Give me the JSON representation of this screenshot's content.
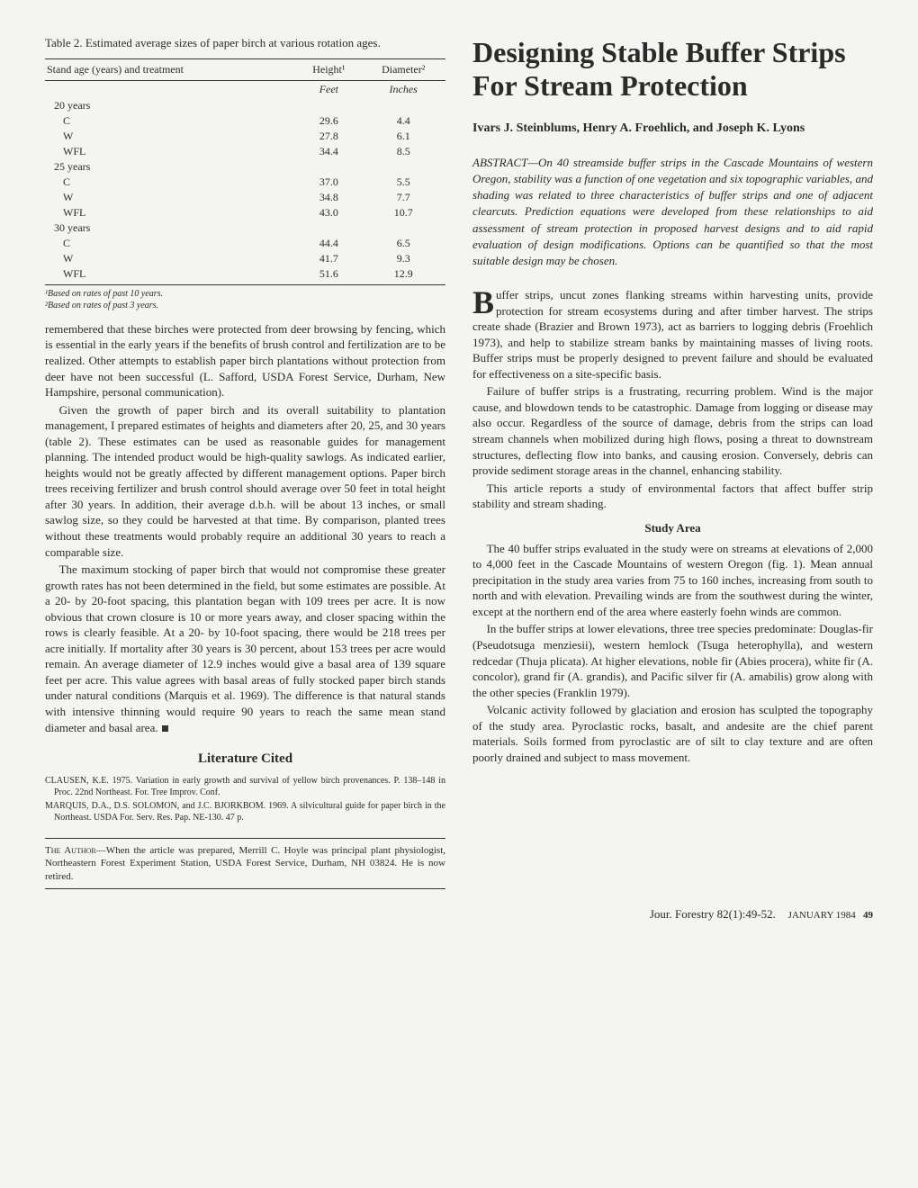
{
  "left": {
    "table_title": "Table 2. Estimated average sizes of paper birch at various rotation ages.",
    "table": {
      "head1": "Stand age (years) and treatment",
      "head2": "Height¹",
      "head3": "Diameter²",
      "unit2": "Feet",
      "unit3": "Inches",
      "groups": [
        {
          "label": "20 years",
          "rows": [
            [
              "C",
              "29.6",
              "4.4"
            ],
            [
              "W",
              "27.8",
              "6.1"
            ],
            [
              "WFL",
              "34.4",
              "8.5"
            ]
          ]
        },
        {
          "label": "25 years",
          "rows": [
            [
              "C",
              "37.0",
              "5.5"
            ],
            [
              "W",
              "34.8",
              "7.7"
            ],
            [
              "WFL",
              "43.0",
              "10.7"
            ]
          ]
        },
        {
          "label": "30 years",
          "rows": [
            [
              "C",
              "44.4",
              "6.5"
            ],
            [
              "W",
              "41.7",
              "9.3"
            ],
            [
              "WFL",
              "51.6",
              "12.9"
            ]
          ]
        }
      ]
    },
    "foot1": "¹Based on rates of past 10 years.",
    "foot2": "²Based on rates of past 3 years.",
    "p1": "remembered that these birches were protected from deer browsing by fencing, which is essential in the early years if the benefits of brush control and fertilization are to be realized. Other attempts to establish paper birch plantations without protection from deer have not been successful (L. Safford, USDA Forest Service, Durham, New Hampshire, personal communication).",
    "p2": "Given the growth of paper birch and its overall suitability to plantation management, I prepared estimates of heights and diameters after 20, 25, and 30 years (table 2). These estimates can be used as reasonable guides for management planning. The intended product would be high-quality sawlogs. As indicated earlier, heights would not be greatly affected by different management options. Paper birch trees receiving fertilizer and brush control should average over 50 feet in total height after 30 years. In addition, their average d.b.h. will be about 13 inches, or small sawlog size, so they could be harvested at that time. By comparison, planted trees without these treatments would probably require an additional 30 years to reach a comparable size.",
    "p3": "The maximum stocking of paper birch that would not compromise these greater growth rates has not been determined in the field, but some estimates are possible. At a 20- by 20-foot spacing, this plantation began with 109 trees per acre. It is now obvious that crown closure is 10 or more years away, and closer spacing within the rows is clearly feasible. At a 20- by 10-foot spacing, there would be 218 trees per acre initially. If mortality after 30 years is 30 percent, about 153 trees per acre would remain. An average diameter of 12.9 inches would give a basal area of 139 square feet per acre. This value agrees with basal areas of fully stocked paper birch stands under natural conditions (Marquis et al. 1969). The difference is that natural stands with intensive thinning would require 90 years to reach the same mean stand diameter and basal area.",
    "lit_head": "Literature Cited",
    "ref1": "CLAUSEN, K.E. 1975. Variation in early growth and survival of yellow birch provenances. P. 138–148 in Proc. 22nd Northeast. For. Tree Improv. Conf.",
    "ref2": "MARQUIS, D.A., D.S. SOLOMON, and J.C. BJORKBOM. 1969. A silvicultural guide for paper birch in the Northeast. USDA For. Serv. Res. Pap. NE-130. 47 p.",
    "author_note_label": "The Author—",
    "author_note": "When the article was prepared, Merrill C. Hoyle was principal plant physiologist, Northeastern Forest Experiment Station, USDA Forest Service, Durham, NH 03824. He is now retired."
  },
  "right": {
    "title": "Designing Stable Buffer Strips For Stream Protection",
    "authors": "Ivars J. Steinblums, Henry A. Froehlich, and Joseph K. Lyons",
    "abstract": "ABSTRACT—On 40 streamside buffer strips in the Cascade Mountains of western Oregon, stability was a function of one vegetation and six topographic variables, and shading was related to three characteristics of buffer strips and one of adjacent clearcuts. Prediction equations were developed from these relationships to aid assessment of stream protection in proposed harvest designs and to aid rapid evaluation of design modifications. Options can be quantified so that the most suitable design may be chosen.",
    "drop": "B",
    "p1": "uffer strips, uncut zones flanking streams within harvesting units, provide protection for stream ecosystems during and after timber harvest. The strips create shade (Brazier and Brown 1973), act as barriers to logging debris (Froehlich 1973), and help to stabilize stream banks by maintaining masses of living roots. Buffer strips must be properly designed to prevent failure and should be evaluated for effectiveness on a site-specific basis.",
    "p2": "Failure of buffer strips is a frustrating, recurring problem. Wind is the major cause, and blowdown tends to be catastrophic. Damage from logging or disease may also occur. Regardless of the source of damage, debris from the strips can load stream channels when mobilized during high flows, posing a threat to downstream structures, deflecting flow into banks, and causing erosion. Conversely, debris can provide sediment storage areas in the channel, enhancing stability.",
    "p3": "This article reports a study of environmental factors that affect buffer strip stability and stream shading.",
    "study_head": "Study Area",
    "p4": "The 40 buffer strips evaluated in the study were on streams at elevations of 2,000 to 4,000 feet in the Cascade Mountains of western Oregon (fig. 1). Mean annual precipitation in the study area varies from 75 to 160 inches, increasing from south to north and with elevation. Prevailing winds are from the southwest during the winter, except at the northern end of the area where easterly foehn winds are common.",
    "p5": "In the buffer strips at lower elevations, three tree species predominate: Douglas-fir (Pseudotsuga menziesii), western hemlock (Tsuga heterophylla), and western redcedar (Thuja plicata). At higher elevations, noble fir (Abies procera), white fir (A. concolor), grand fir (A. grandis), and Pacific silver fir (A. amabilis) grow along with the other species (Franklin 1979).",
    "p6": "Volcanic activity followed by glaciation and erosion has sculpted the topography of the study area. Pyroclastic rocks, basalt, and andesite are the chief parent materials. Soils formed from pyroclastic are of silt to clay texture and are often poorly drained and subject to mass movement."
  },
  "footer": {
    "hand": "Jour. Forestry 82(1):49-52.",
    "issue": "JANUARY 1984",
    "page": "49"
  }
}
